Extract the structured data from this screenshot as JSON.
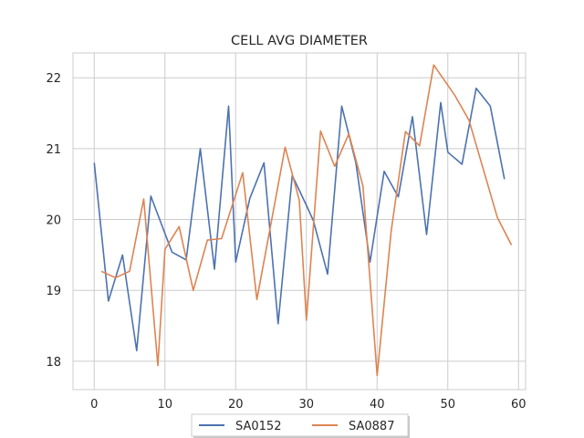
{
  "chart_data": {
    "type": "line",
    "title": "CELL AVG  DIAMETER",
    "xlabel": "",
    "ylabel": "",
    "xlim": [
      -3,
      61
    ],
    "ylim": [
      17.6,
      22.35
    ],
    "xticks": [
      0,
      10,
      20,
      30,
      40,
      50,
      60
    ],
    "yticks": [
      18,
      19,
      20,
      21,
      22
    ],
    "grid": true,
    "legend_placement": "bottom-center",
    "series": [
      {
        "name": "SA0152",
        "color": "#4c72b0",
        "x": [
          0,
          2,
          4,
          6,
          8,
          11,
          13,
          15,
          17,
          19,
          20,
          22,
          24,
          26,
          28,
          30,
          31,
          33,
          35,
          37,
          39,
          41,
          43,
          45,
          47,
          49,
          50,
          52,
          54,
          56,
          58
        ],
        "y": [
          20.8,
          18.85,
          19.5,
          18.15,
          20.33,
          19.54,
          19.43,
          21.0,
          19.3,
          21.6,
          19.4,
          20.3,
          20.8,
          18.53,
          20.62,
          20.2,
          19.98,
          19.23,
          21.6,
          20.8,
          19.4,
          20.68,
          20.32,
          21.45,
          19.79,
          21.65,
          20.95,
          20.78,
          21.85,
          21.6,
          20.57
        ]
      },
      {
        "name": "SA0887",
        "color": "#dd8452",
        "x": [
          1,
          3,
          5,
          7,
          9,
          10,
          12,
          14,
          16,
          18,
          21,
          23,
          27,
          29,
          30,
          32,
          34,
          36,
          38,
          40,
          42,
          44,
          46,
          48,
          51,
          53,
          57,
          59
        ],
        "y": [
          19.27,
          19.18,
          19.27,
          20.29,
          17.94,
          19.58,
          19.9,
          19.0,
          19.71,
          19.73,
          20.66,
          18.87,
          21.02,
          20.27,
          18.58,
          21.25,
          20.75,
          21.21,
          20.47,
          17.8,
          19.85,
          21.24,
          21.04,
          22.18,
          21.75,
          21.4,
          20.03,
          19.64
        ]
      }
    ]
  }
}
